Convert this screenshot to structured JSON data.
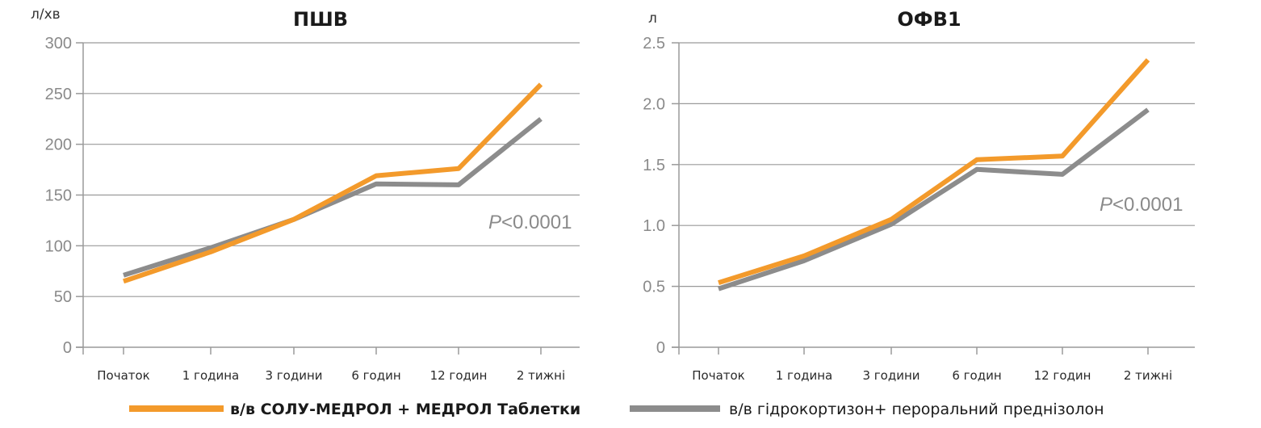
{
  "colors": {
    "series_orange": "#F39A2B",
    "series_gray": "#8C8C8C",
    "grid": "#9a9a9a",
    "axis": "#9a9a9a"
  },
  "chart_data": [
    {
      "type": "line",
      "title": "ПШВ",
      "ylabel": "л/хв",
      "xlabel": "",
      "categories": [
        "Початок",
        "1 година",
        "3 години",
        "6 годин",
        "12 годин",
        "2 тижні"
      ],
      "ylim": [
        0,
        300
      ],
      "yticks": [
        0,
        50,
        100,
        150,
        200,
        250,
        300
      ],
      "yticklabels": [
        "0",
        "50",
        "100",
        "150",
        "200",
        "250",
        "300"
      ],
      "grid": true,
      "annotation": {
        "italic": "P",
        "rest": "<0.0001"
      },
      "series": [
        {
          "values": [
            65,
            94,
            126,
            169,
            176,
            259
          ],
          "color": "#F39A2B"
        },
        {
          "values": [
            71,
            98,
            126,
            161,
            160,
            225
          ],
          "color": "#8C8C8C"
        }
      ]
    },
    {
      "type": "line",
      "title": "ОФВ1",
      "ylabel": "л",
      "xlabel": "",
      "categories": [
        "Початок",
        "1 година",
        "3 години",
        "6 годин",
        "12 годин",
        "2 тижні"
      ],
      "ylim": [
        0,
        2.5
      ],
      "yticks": [
        0,
        0.5,
        1.0,
        1.5,
        2.0,
        2.5
      ],
      "yticklabels": [
        "0",
        "0.5",
        "1.0",
        "1.5",
        "2.0",
        "2.5"
      ],
      "grid": true,
      "annotation": {
        "italic": "P",
        "rest": "<0.0001"
      },
      "series": [
        {
          "values": [
            0.53,
            0.75,
            1.05,
            1.54,
            1.57,
            2.36
          ],
          "color": "#F39A2B"
        },
        {
          "values": [
            0.48,
            0.71,
            1.01,
            1.46,
            1.42,
            1.95
          ],
          "color": "#8C8C8C"
        }
      ]
    }
  ],
  "legend": {
    "placement": "bottom",
    "items": [
      {
        "label": "в/в СОЛУ-МЕДРОЛ + МЕДРОЛ Таблетки",
        "color": "#F39A2B",
        "bold": true
      },
      {
        "label": "в/в гідрокортизон+ пероральний преднізолон",
        "color": "#8C8C8C",
        "bold": false
      }
    ]
  }
}
